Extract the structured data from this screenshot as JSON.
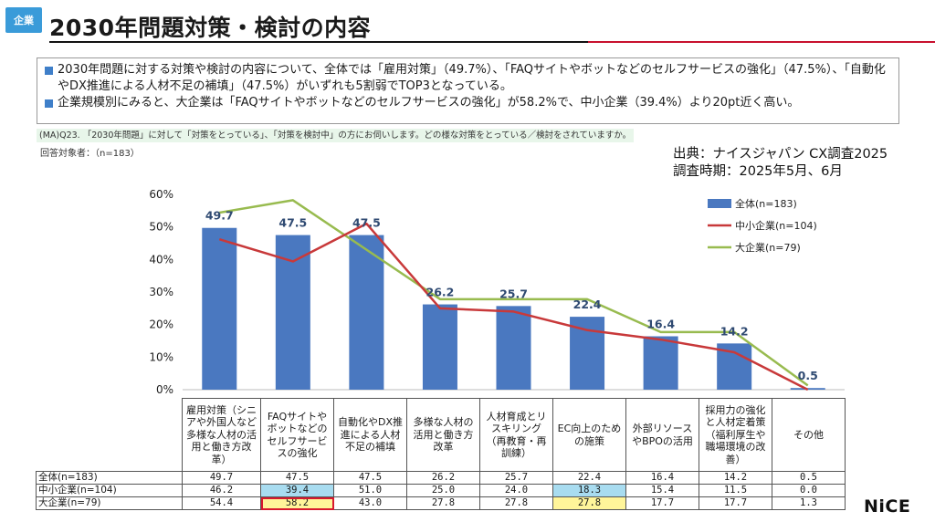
{
  "tag": "企業",
  "title": "2030年問題対策・検討の内容",
  "summary": [
    "2030年問題に対する対策や検討の内容について、全体では「雇用対策」（49.7%）、「FAQサイトやボットなどのセルフサービスの強化」（47.5%）、「自動化やDX推進による人材不足の補填」（47.5%）がいずれも5割弱でTOP3となっている。",
    "企業規模別にみると、大企業は「FAQサイトやボットなどのセルフサービスの強化」が58.2%で、中小企業（39.4%）より20pt近く高い。"
  ],
  "question": "(MA)Q23. 「2030年問題」に対して「対策をとっている」、「対策を検討中」の方にお伺いします。どの様な対策をとっている／検討をされていますか。",
  "respondents": "回答対象者：（n=183）",
  "source": {
    "line1": "出典：ナイスジャパン CX調査2025",
    "line2": "調査時期：2025年5月、6月"
  },
  "logo": "NiCE",
  "colors": {
    "bar": "#4a78c0",
    "sme": "#c8393a",
    "large": "#98bb4f",
    "accent": "#3a9bd9"
  },
  "chart_data": {
    "type": "bar",
    "categories": [
      "雇用対策（シニアや外国人など多様な人材の活用と働き方改革）",
      "FAQサイトやボットなどのセルフサービスの強化",
      "自動化やDX推進による人材不足の補填",
      "多様な人材の活用と働き方改革",
      "人材育成とリスキリング（再教育・再訓練）",
      "EC向上のための施策",
      "外部リソースやBPOの活用",
      "採用力の強化と人材定着策（福利厚生や職場環境の改善）",
      "その他"
    ],
    "y_ticks": [
      "0%",
      "10%",
      "20%",
      "30%",
      "40%",
      "50%",
      "60%"
    ],
    "ylim": [
      0,
      60
    ],
    "series": [
      {
        "name": "全体(n=183)",
        "kind": "bar",
        "values": [
          49.7,
          47.5,
          47.5,
          26.2,
          25.7,
          22.4,
          16.4,
          14.2,
          0.5
        ],
        "labels": [
          "49.7",
          "47.5",
          "47.5",
          "26.2",
          "25.7",
          "22.4",
          "16.4",
          "14.2",
          "0.5"
        ]
      },
      {
        "name": "中小企業(n=104)",
        "kind": "line",
        "values": [
          46.2,
          39.4,
          51.0,
          25.0,
          24.0,
          18.3,
          15.4,
          11.5,
          0.0
        ]
      },
      {
        "name": "大企業(n=79)",
        "kind": "line",
        "values": [
          54.4,
          58.2,
          43.0,
          27.8,
          27.8,
          27.8,
          17.7,
          17.7,
          1.3
        ]
      }
    ],
    "legend_position": "right"
  },
  "table": {
    "headers": [
      "雇用対策（シニアや外国人など多様な人材の活用と働き方改革）",
      "FAQサイトやボットなどのセルフサービスの強化",
      "自動化やDX推進による人材不足の補填",
      "多様な人材の活用と働き方改革",
      "人材育成とリスキリング（再教育・再訓練）",
      "EC向上のための施策",
      "外部リソースやBPOの活用",
      "採用力の強化と人材定着策（福利厚生や職場環境の改善）",
      "その他"
    ],
    "rows": [
      {
        "label": "全体(n=183)",
        "values": [
          "49.7",
          "47.5",
          "47.5",
          "26.2",
          "25.7",
          "22.4",
          "16.4",
          "14.2",
          "0.5"
        ]
      },
      {
        "label": "中小企業(n=104)",
        "values": [
          "46.2",
          "39.4",
          "51.0",
          "25.0",
          "24.0",
          "18.3",
          "15.4",
          "11.5",
          "0.0"
        ]
      },
      {
        "label": "大企業(n=79)",
        "values": [
          "54.4",
          "58.2",
          "43.0",
          "27.8",
          "27.8",
          "27.8",
          "17.7",
          "17.7",
          "1.3"
        ]
      }
    ]
  }
}
